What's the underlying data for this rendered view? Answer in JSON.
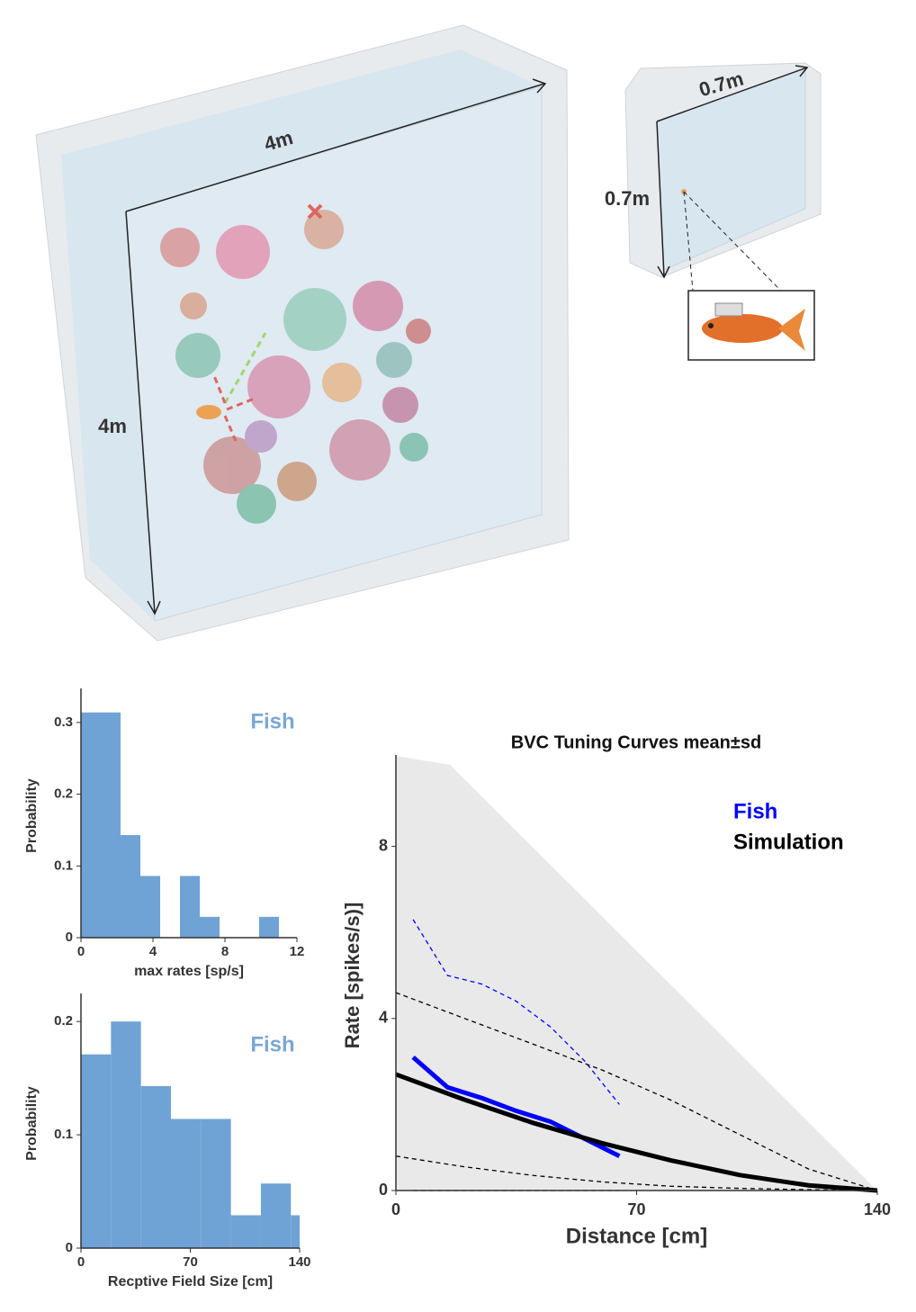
{
  "illustration": {
    "labels": [
      "4m",
      "4m",
      "0.7m",
      "0.7m"
    ]
  },
  "chart_data": [
    {
      "type": "histogram",
      "bins": [
        0,
        1.1,
        2.2,
        3.3,
        4.4,
        5.5,
        6.6,
        7.7,
        8.8,
        9.9,
        11
      ],
      "values": [
        0.314,
        0.314,
        0.143,
        0.086,
        0,
        0.086,
        0.029,
        0,
        0,
        0.029
      ],
      "color": "#6fa3d5",
      "annotation": "Fish",
      "xlabel": "max rates [sp/s]",
      "ylabel": "Probability",
      "xlim": [
        0,
        12
      ],
      "xticks": [
        0,
        4,
        8,
        12
      ],
      "ylim": [
        0,
        0.34
      ],
      "yticks": [
        0,
        0.1,
        0.2,
        0.3
      ]
    },
    {
      "type": "histogram",
      "bins": [
        0,
        19.2,
        38.4,
        57.6,
        76.8,
        96,
        115.2,
        134.4,
        153.6
      ],
      "values": [
        0.171,
        0.2,
        0.143,
        0.114,
        0.114,
        0.029,
        0.057,
        0.029
      ],
      "color": "#6fa3d5",
      "annotation": "Fish",
      "xlabel": "Recptive Field Size [cm]",
      "ylabel": "Probability",
      "xlim": [
        0,
        140
      ],
      "xticks": [
        0,
        70,
        140
      ],
      "ylim": [
        0,
        0.22
      ],
      "yticks": [
        0,
        0.1,
        0.2
      ]
    },
    {
      "type": "line",
      "title": "BVC Tuning Curves mean±sd",
      "xlabel": "Distance [cm]",
      "ylabel": "Rate [spikes/s)]",
      "xlim": [
        0,
        140
      ],
      "xticks": [
        0,
        70,
        140
      ],
      "ylim": [
        0,
        10
      ],
      "yticks": [
        0,
        4,
        8
      ],
      "series": [
        {
          "name": "Fish",
          "color": "#0000ff",
          "x": [
            5,
            15,
            25,
            35,
            45,
            55,
            65
          ],
          "values": [
            3.1,
            2.4,
            2.15,
            1.85,
            1.6,
            1.2,
            0.8
          ],
          "upper": [
            6.3,
            5.0,
            4.8,
            4.4,
            3.8,
            3.0,
            2.0
          ],
          "lower": [
            0,
            0,
            0,
            0,
            0,
            0,
            0
          ]
        },
        {
          "name": "Simulation",
          "color": "#000000",
          "x": [
            0,
            20,
            40,
            60,
            80,
            100,
            120,
            140
          ],
          "values": [
            2.7,
            2.11,
            1.57,
            1.1,
            0.7,
            0.36,
            0.12,
            0
          ],
          "upper": [
            4.6,
            4.0,
            3.4,
            2.8,
            2.1,
            1.3,
            0.5,
            0
          ],
          "lower": [
            0.8,
            0.55,
            0.35,
            0.2,
            0.1,
            0.05,
            0.02,
            0
          ]
        }
      ]
    }
  ]
}
